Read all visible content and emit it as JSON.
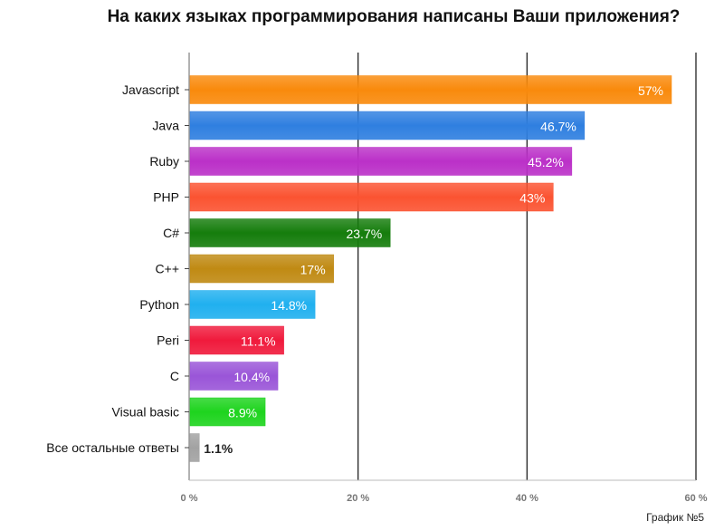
{
  "title": "На каких языках программирования написаны Ваши приложения?",
  "caption": "График №5",
  "chart_data": {
    "type": "bar",
    "orientation": "horizontal",
    "title": "На каких языках программирования написаны Ваши приложения?",
    "xlabel": "",
    "ylabel": "",
    "xlim": [
      0,
      60
    ],
    "xticks": [
      0,
      20,
      40,
      60
    ],
    "xtick_labels": [
      "0 %",
      "20 %",
      "40 %",
      "60 %"
    ],
    "grid": true,
    "categories": [
      "Javascript",
      "Java",
      "Ruby",
      "PHP",
      "C#",
      "C++",
      "Python",
      "Peri",
      "C",
      "Visual basic",
      "Все остальные ответы"
    ],
    "values": [
      57,
      46.7,
      45.2,
      43,
      23.7,
      17,
      14.8,
      11.1,
      10.4,
      8.9,
      1.1
    ],
    "value_labels": [
      "57%",
      "46.7%",
      "45.2%",
      "43%",
      "23.7%",
      "17%",
      "14.8%",
      "11.1%",
      "10.4%",
      "8.9%",
      "1.1%"
    ],
    "colors": [
      "#f98a0c",
      "#2f7fe0",
      "#bb30c8",
      "#fb5331",
      "#157d0c",
      "#c08a13",
      "#20b0ef",
      "#f01a3c",
      "#9a55d8",
      "#1ed41e",
      "#a2a2a2"
    ]
  }
}
